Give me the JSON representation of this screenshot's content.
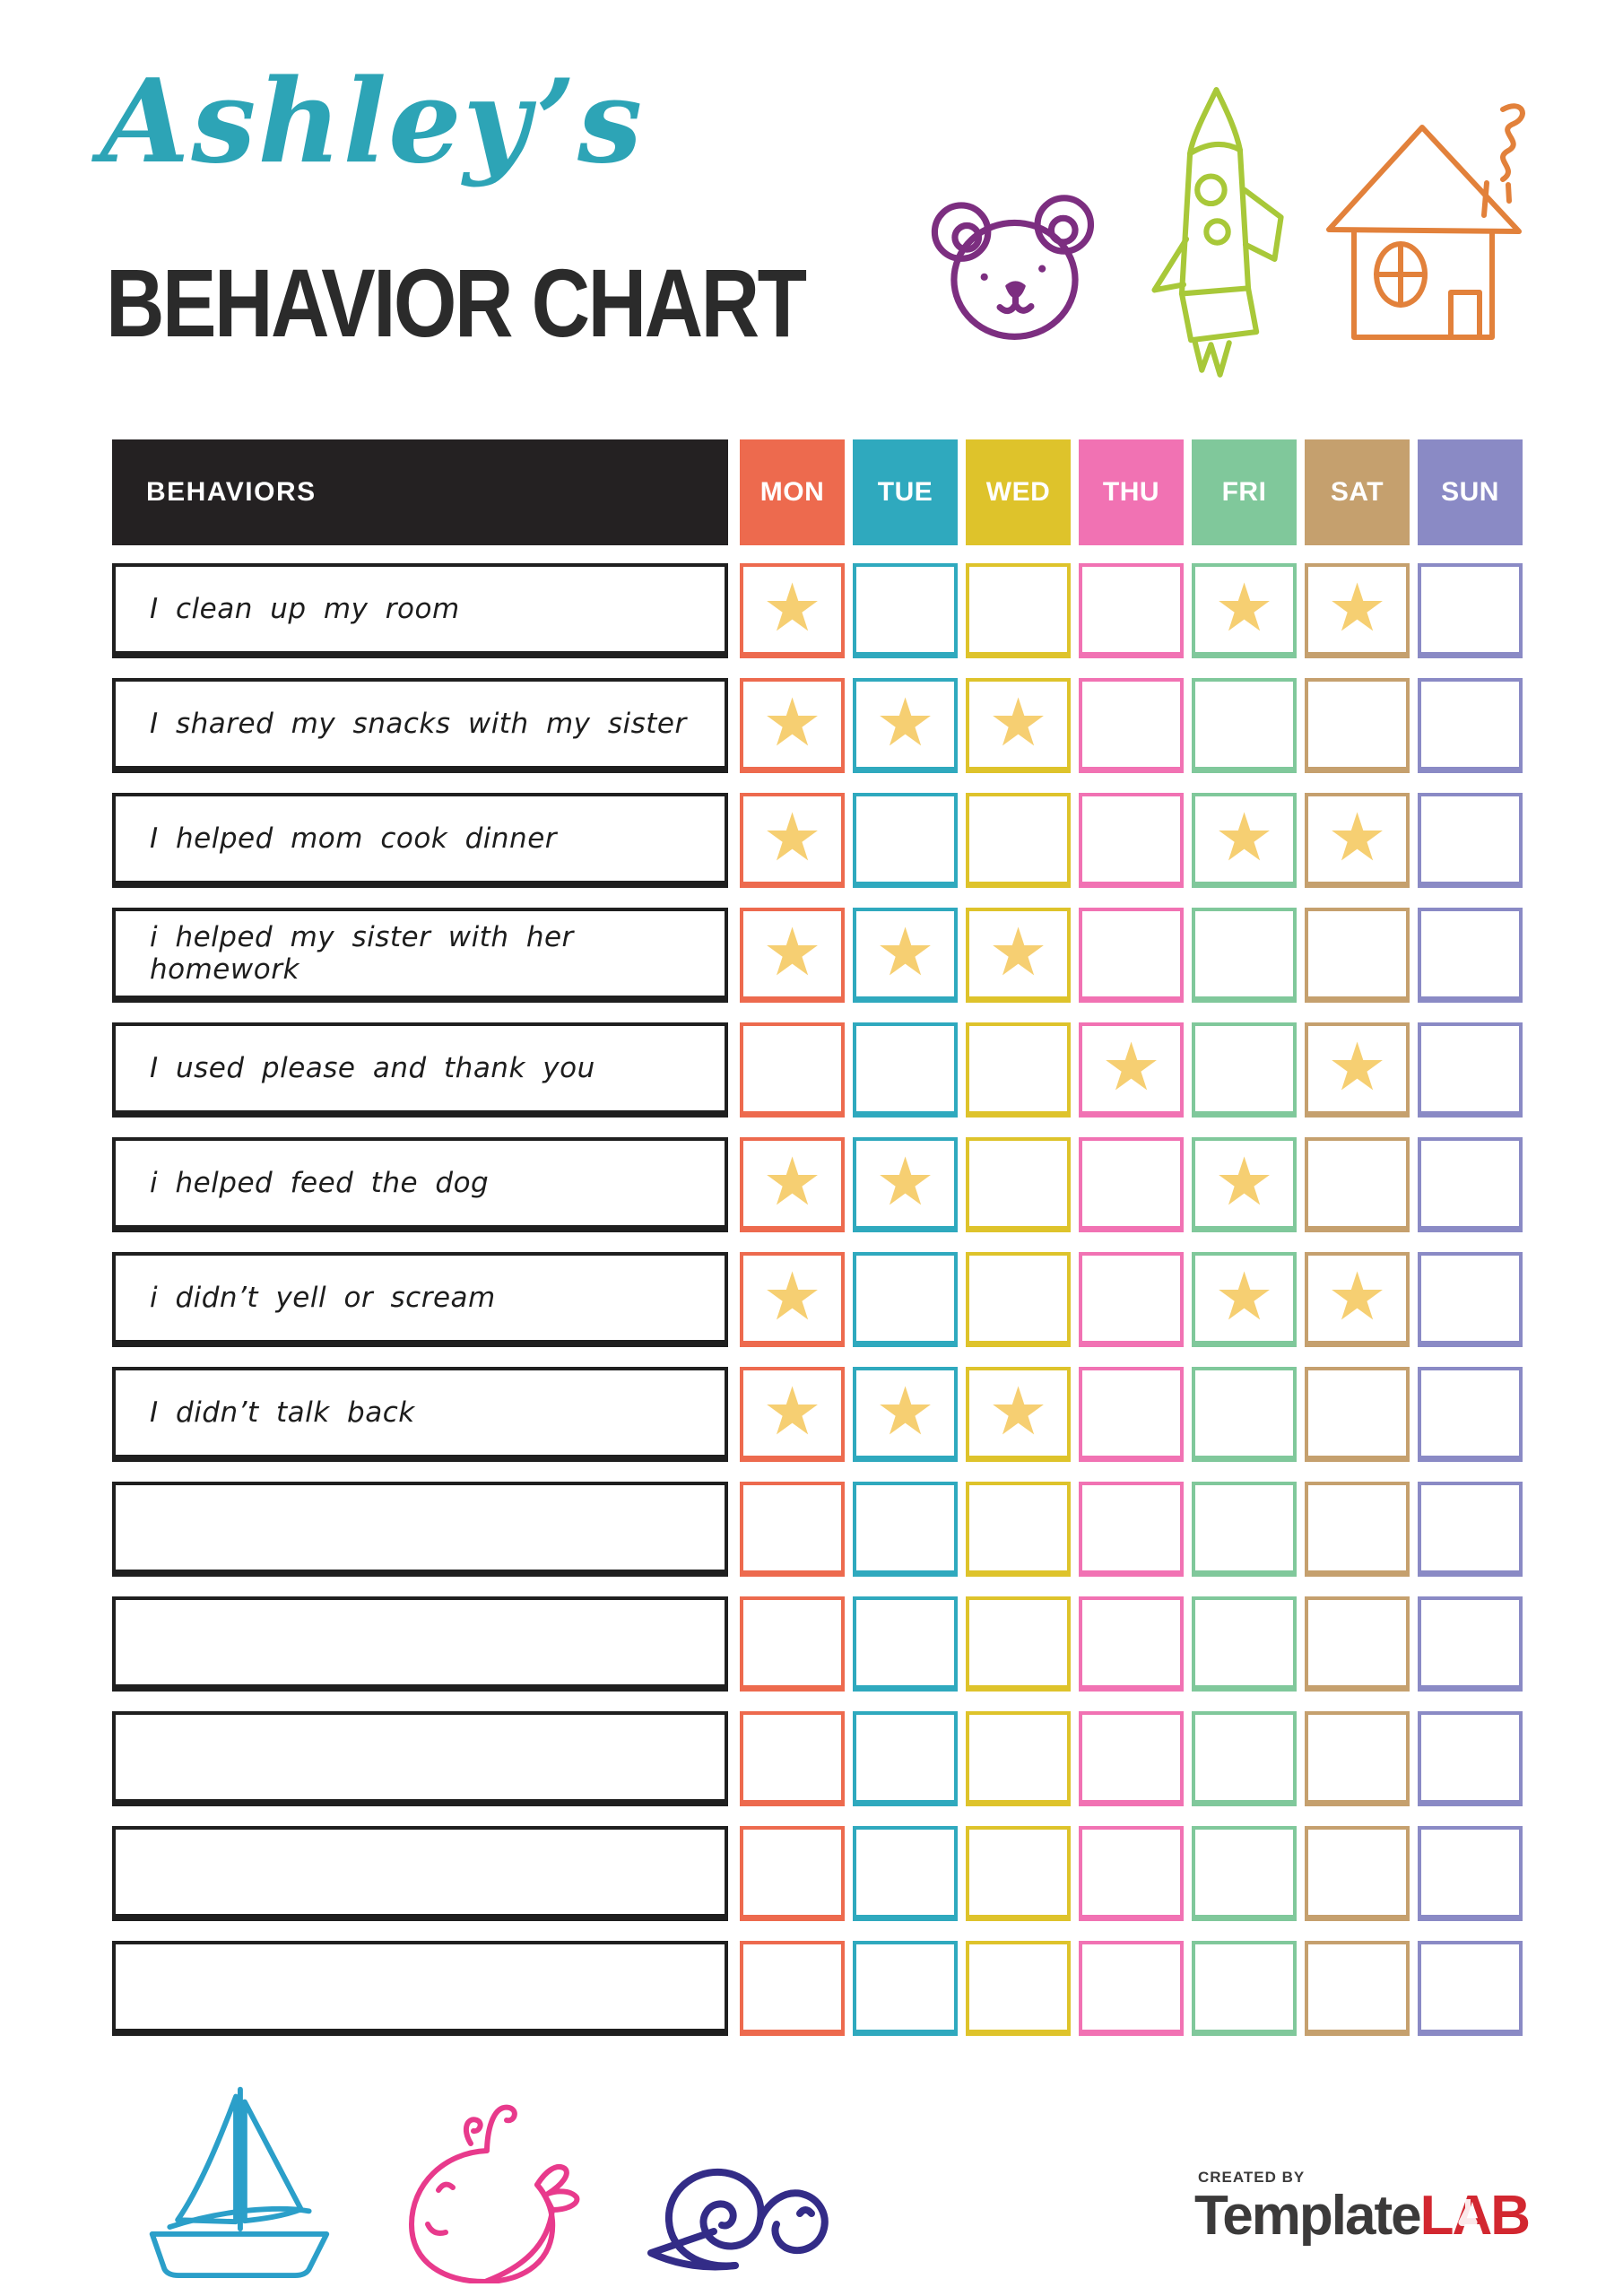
{
  "page": {
    "owner": "Ashley’s",
    "title": "BEHAVIOR CHART"
  },
  "table": {
    "behaviors_header": "BEHAVIORS",
    "header_bg": "#242122",
    "star_color": "#F6CF72",
    "days": [
      {
        "label": "MON",
        "color": "#ED6A4E"
      },
      {
        "label": "TUE",
        "color": "#2FA9BE"
      },
      {
        "label": "WED",
        "color": "#DEC32B"
      },
      {
        "label": "THU",
        "color": "#F172B3"
      },
      {
        "label": "FRI",
        "color": "#80C89B"
      },
      {
        "label": "SAT",
        "color": "#C5A06E"
      },
      {
        "label": "SUN",
        "color": "#8A8AC5"
      }
    ],
    "rows": [
      {
        "behavior": "I clean up my room",
        "stars": [
          1,
          0,
          0,
          0,
          1,
          1,
          0
        ]
      },
      {
        "behavior": "I shared my snacks with my sister",
        "stars": [
          1,
          1,
          1,
          0,
          0,
          0,
          0
        ]
      },
      {
        "behavior": "I helped mom cook dinner",
        "stars": [
          1,
          0,
          0,
          0,
          1,
          1,
          0
        ]
      },
      {
        "behavior": "i helped my sister with her homework",
        "stars": [
          1,
          1,
          1,
          0,
          0,
          0,
          0
        ]
      },
      {
        "behavior": "I used please and thank you",
        "stars": [
          0,
          0,
          0,
          1,
          0,
          1,
          0
        ]
      },
      {
        "behavior": "i helped feed the dog",
        "stars": [
          1,
          1,
          0,
          0,
          1,
          0,
          0
        ]
      },
      {
        "behavior": "i didn’t yell or scream",
        "stars": [
          1,
          0,
          0,
          0,
          1,
          1,
          0
        ]
      },
      {
        "behavior": "I didn’t talk back",
        "stars": [
          1,
          1,
          1,
          0,
          0,
          0,
          0
        ]
      },
      {
        "behavior": "",
        "stars": [
          0,
          0,
          0,
          0,
          0,
          0,
          0
        ]
      },
      {
        "behavior": "",
        "stars": [
          0,
          0,
          0,
          0,
          0,
          0,
          0
        ]
      },
      {
        "behavior": "",
        "stars": [
          0,
          0,
          0,
          0,
          0,
          0,
          0
        ]
      },
      {
        "behavior": "",
        "stars": [
          0,
          0,
          0,
          0,
          0,
          0,
          0
        ]
      },
      {
        "behavior": "",
        "stars": [
          0,
          0,
          0,
          0,
          0,
          0,
          0
        ]
      }
    ]
  },
  "decorations": {
    "top": [
      "bear-icon",
      "rocket-icon",
      "house-icon"
    ],
    "bottom": [
      "sailboat-icon",
      "whale-icon",
      "snail-icon"
    ]
  },
  "footer": {
    "created_by": "CREATED BY",
    "brand_name": "Template",
    "brand_suffix": "LAB"
  },
  "colors": {
    "title_script": "#2DA4B6",
    "heading": "#2B2B2B",
    "bear": "#7C2E80",
    "rocket": "#A8C839",
    "house": "#E2813B",
    "boat": "#2B9FC9",
    "whale": "#E83A8C",
    "snail": "#332C87",
    "brand_gray": "#3B3A3A",
    "brand_red": "#D22730"
  }
}
